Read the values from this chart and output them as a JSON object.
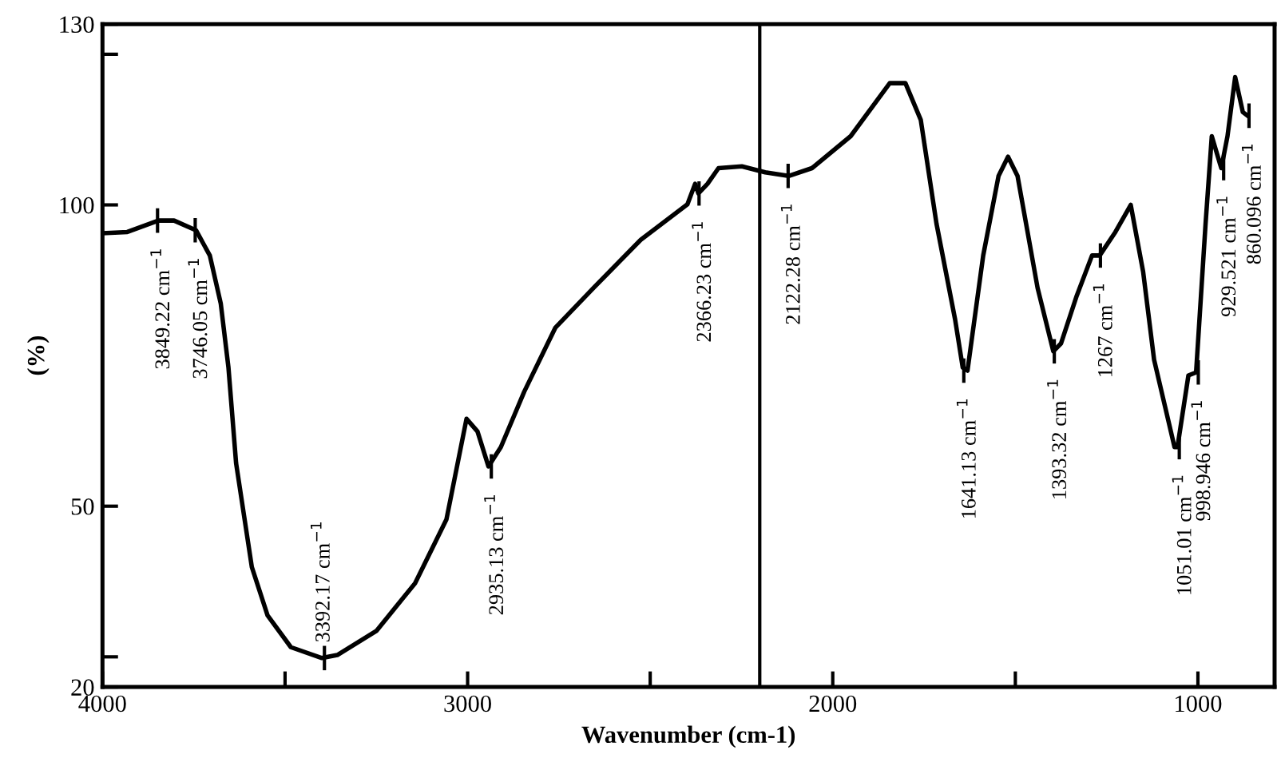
{
  "chart_data": {
    "type": "line",
    "xlabel": "Wavenumber (cm-1)",
    "ylabel": "(%)",
    "x": [
      4000,
      3932,
      3847,
      3804,
      3744,
      3706,
      3676,
      3655,
      3634,
      3591,
      3548,
      3484,
      3399,
      3357,
      3250,
      3144,
      3058,
      3003,
      2973,
      2943,
      2909,
      2845,
      2760,
      2654,
      2526,
      2398,
      2377,
      2368,
      2343,
      2313,
      2249,
      2185,
      2121,
      2057,
      1951,
      1844,
      1801,
      1759,
      1716,
      1665,
      1644,
      1631,
      1588,
      1546,
      1520,
      1494,
      1439,
      1396,
      1375,
      1332,
      1290,
      1269,
      1226,
      1184,
      1150,
      1120,
      1064,
      1056,
      1026,
      1005,
      979,
      962,
      936,
      919,
      898,
      877,
      864
    ],
    "series": [
      {
        "color": "#000000",
        "values": [
          95.3,
          95.5,
          97.4,
          97.4,
          95.8,
          91.6,
          83.6,
          73,
          57.1,
          39.9,
          31.9,
          26.6,
          24.8,
          25.3,
          29.3,
          37.2,
          47.8,
          64.5,
          62.4,
          56.6,
          59.8,
          69,
          79.6,
          86.3,
          94.2,
          100.1,
          103.5,
          101.9,
          103.5,
          106.1,
          106.4,
          105.4,
          104.8,
          106.1,
          111.4,
          120.2,
          120.2,
          114.1,
          96.9,
          81,
          73,
          72.5,
          91.6,
          104.8,
          108,
          104.8,
          86.2,
          75.7,
          77,
          84.9,
          91.6,
          91.6,
          95.5,
          100,
          88.9,
          74.3,
          59.8,
          59.8,
          71.7,
          72.2,
          96.9,
          111.4,
          106.1,
          111.4,
          121.2,
          115.4,
          114.8
        ]
      }
    ],
    "xlim": [
      4000,
      790
    ],
    "xticks": [
      4000,
      {
        "value": 3500,
        "label": null
      },
      3000,
      {
        "value": 2500,
        "label": null
      },
      2000,
      {
        "value": 1500,
        "label": null
      },
      1000
    ],
    "ylim": [
      20,
      130
    ],
    "yticks": [
      20,
      {
        "value": 25,
        "label": null
      },
      50,
      100,
      {
        "value": 125,
        "label": null
      },
      130
    ],
    "ref_lines": [
      {
        "axis": "x",
        "value": 2200,
        "color": "#000000"
      }
    ],
    "annotations": [
      {
        "text": "3849.22 cm$^{−1}$",
        "x": 3849.22,
        "y": 97.4
      },
      {
        "text": "3746.05 cm$^{−1}$",
        "x": 3746.05,
        "y": 95.8
      },
      {
        "text": "3392.17 cm$^{−1}$",
        "x": 3392.17,
        "y": 24.8
      },
      {
        "text": "2935.13 cm$^{−1}$",
        "x": 2935.13,
        "y": 56.6
      },
      {
        "text": "2366.23 cm$^{−1}$",
        "x": 2366.23,
        "y": 101.9
      },
      {
        "text": "2122.28 cm$^{−1}$",
        "x": 2122.28,
        "y": 104.8
      },
      {
        "text": "1641.13 cm$^{−1}$",
        "x": 1641.13,
        "y": 72.5
      },
      {
        "text": "1393.32 cm$^{−1}$",
        "x": 1393.32,
        "y": 75.7
      },
      {
        "text": "1267 cm$^{−1}$",
        "x": 1267,
        "y": 91.6
      },
      {
        "text": "1051.01 cm$^{−1}$",
        "x": 1051.01,
        "y": 59.8
      },
      {
        "text": "998.946 cm$^{−1}$",
        "x": 998.946,
        "y": 72.2
      },
      {
        "text": "929.521 cm$^{−1}$",
        "x": 929.521,
        "y": 106.1
      },
      {
        "text": "860.096 cm$^{−1}$",
        "x": 860.096,
        "y": 114.8
      }
    ],
    "grid": false,
    "line_style": "solid",
    "marker": "none"
  }
}
